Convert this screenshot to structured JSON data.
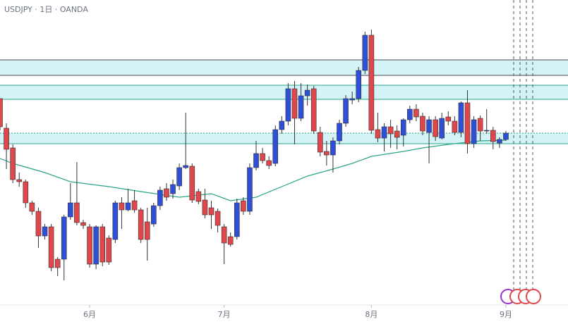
{
  "chart_data": {
    "type": "candlestick",
    "title": "USDJPY · 1日 · OANDA",
    "up_color": "#2f4fd8",
    "down_color": "#e0474c",
    "open": [
      320,
      278,
      250,
      205,
      202,
      172,
      160,
      125,
      138,
      92,
      92,
      152,
      172,
      144,
      138,
      85,
      138,
      122,
      120,
      172,
      162,
      175,
      162,
      145,
      142,
      168,
      192,
      185,
      196,
      222,
      224,
      188,
      176,
      165,
      160,
      138,
      124,
      124,
      175,
      160,
      222,
      242,
      232,
      228,
      276,
      288,
      334,
      292,
      324,
      334,
      272,
      245,
      240,
      260,
      285,
      318,
      320,
      360,
      410,
      276,
      264,
      280,
      274,
      268,
      290,
      305,
      295,
      272,
      290,
      264,
      294,
      288,
      272,
      314,
      256,
      292,
      274,
      275,
      257,
      262
    ],
    "high": [
      320,
      285,
      255,
      215,
      205,
      175,
      165,
      142,
      142,
      95,
      155,
      200,
      230,
      148,
      142,
      140,
      142,
      126,
      175,
      180,
      192,
      190,
      165,
      165,
      172,
      195,
      200,
      205,
      228,
      300,
      228,
      192,
      192,
      175,
      164,
      142,
      130,
      178,
      180,
      228,
      260,
      250,
      238,
      282,
      295,
      342,
      345,
      342,
      340,
      338,
      280,
      260,
      265,
      290,
      325,
      330,
      365,
      415,
      418,
      300,
      285,
      290,
      282,
      292,
      310,
      312,
      300,
      295,
      295,
      300,
      302,
      295,
      316,
      332,
      295,
      296,
      305,
      280,
      265,
      274
    ],
    "low": [
      275,
      220,
      200,
      195,
      165,
      155,
      108,
      120,
      75,
      68,
      62,
      148,
      140,
      135,
      80,
      78,
      82,
      84,
      115,
      135,
      160,
      158,
      115,
      90,
      138,
      162,
      175,
      178,
      190,
      220,
      172,
      170,
      150,
      135,
      130,
      85,
      110,
      120,
      155,
      155,
      218,
      228,
      220,
      224,
      270,
      282,
      255,
      288,
      310,
      270,
      238,
      225,
      215,
      255,
      280,
      312,
      315,
      355,
      270,
      258,
      245,
      250,
      248,
      252,
      285,
      288,
      268,
      228,
      260,
      262,
      282,
      268,
      265,
      242,
      250,
      260,
      270,
      248,
      250,
      260
    ],
    "close": [
      280,
      248,
      205,
      202,
      172,
      160,
      125,
      138,
      80,
      80,
      152,
      172,
      144,
      140,
      85,
      138,
      88,
      88,
      172,
      162,
      172,
      162,
      120,
      120,
      168,
      190,
      180,
      198,
      222,
      225,
      176,
      174,
      155,
      155,
      140,
      115,
      113,
      172,
      160,
      222,
      242,
      232,
      225,
      276,
      288,
      334,
      292,
      324,
      332,
      274,
      244,
      240,
      260,
      285,
      320,
      320,
      360,
      410,
      275,
      264,
      280,
      270,
      265,
      290,
      305,
      294,
      274,
      290,
      266,
      292,
      288,
      272,
      314,
      256,
      290,
      274,
      275,
      259,
      262,
      271
    ],
    "moving_average": {
      "color": "#2aa58a",
      "x": [
        0,
        2,
        7,
        11,
        17,
        22,
        28,
        33,
        36,
        40,
        44,
        48,
        52,
        55,
        58,
        63,
        66,
        70,
        75,
        79
      ],
      "values": [
        235,
        228,
        215,
        202,
        195,
        188,
        180,
        185,
        175,
        180,
        195,
        210,
        220,
        228,
        238,
        245,
        250,
        255,
        260,
        261
      ]
    },
    "zones": [
      {
        "range": [
          353,
          375
        ],
        "color": "#d4f3f7"
      },
      {
        "range": [
          319,
          339
        ],
        "color": "#d4f3f7"
      },
      {
        "range": [
          256,
          271
        ],
        "color": "#d4f3f7"
      }
    ],
    "xlim": [
      0,
      88.7
    ],
    "ylim": [
      0,
      460
    ],
    "xticks": [
      {
        "value": 14,
        "label": "6月"
      },
      {
        "value": 35,
        "label": "7月"
      },
      {
        "value": 58,
        "label": "8月"
      },
      {
        "value": 79,
        "label": "9月"
      }
    ]
  }
}
